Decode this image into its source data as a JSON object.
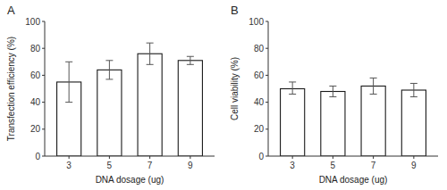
{
  "chart_data": [
    {
      "type": "bar",
      "title": "A",
      "categories": [
        "3",
        "5",
        "7",
        "9"
      ],
      "values": [
        55,
        64,
        76,
        71
      ],
      "yerr_lower": [
        15,
        7,
        8,
        3
      ],
      "yerr_upper": [
        15,
        7,
        8,
        3
      ],
      "y_label": "Transfection efficiency (%)",
      "x_label": "DNA dosage (ug)",
      "ylim": [
        0,
        100
      ],
      "yticks": [
        0,
        20,
        40,
        60,
        80,
        100
      ],
      "color": "#ffffff",
      "grid": false
    },
    {
      "type": "bar",
      "title": "B",
      "categories": [
        "3",
        "5",
        "7",
        "9"
      ],
      "values": [
        50,
        48,
        52,
        49
      ],
      "yerr_lower": [
        4,
        4,
        6,
        5
      ],
      "yerr_upper": [
        5,
        4,
        6,
        5
      ],
      "y_label": "Cell viability (%)",
      "x_label": "DNA dosage (ug)",
      "ylim": [
        0,
        100
      ],
      "yticks": [
        0,
        20,
        40,
        60,
        80,
        100
      ],
      "color": "#ffffff",
      "grid": false
    }
  ]
}
